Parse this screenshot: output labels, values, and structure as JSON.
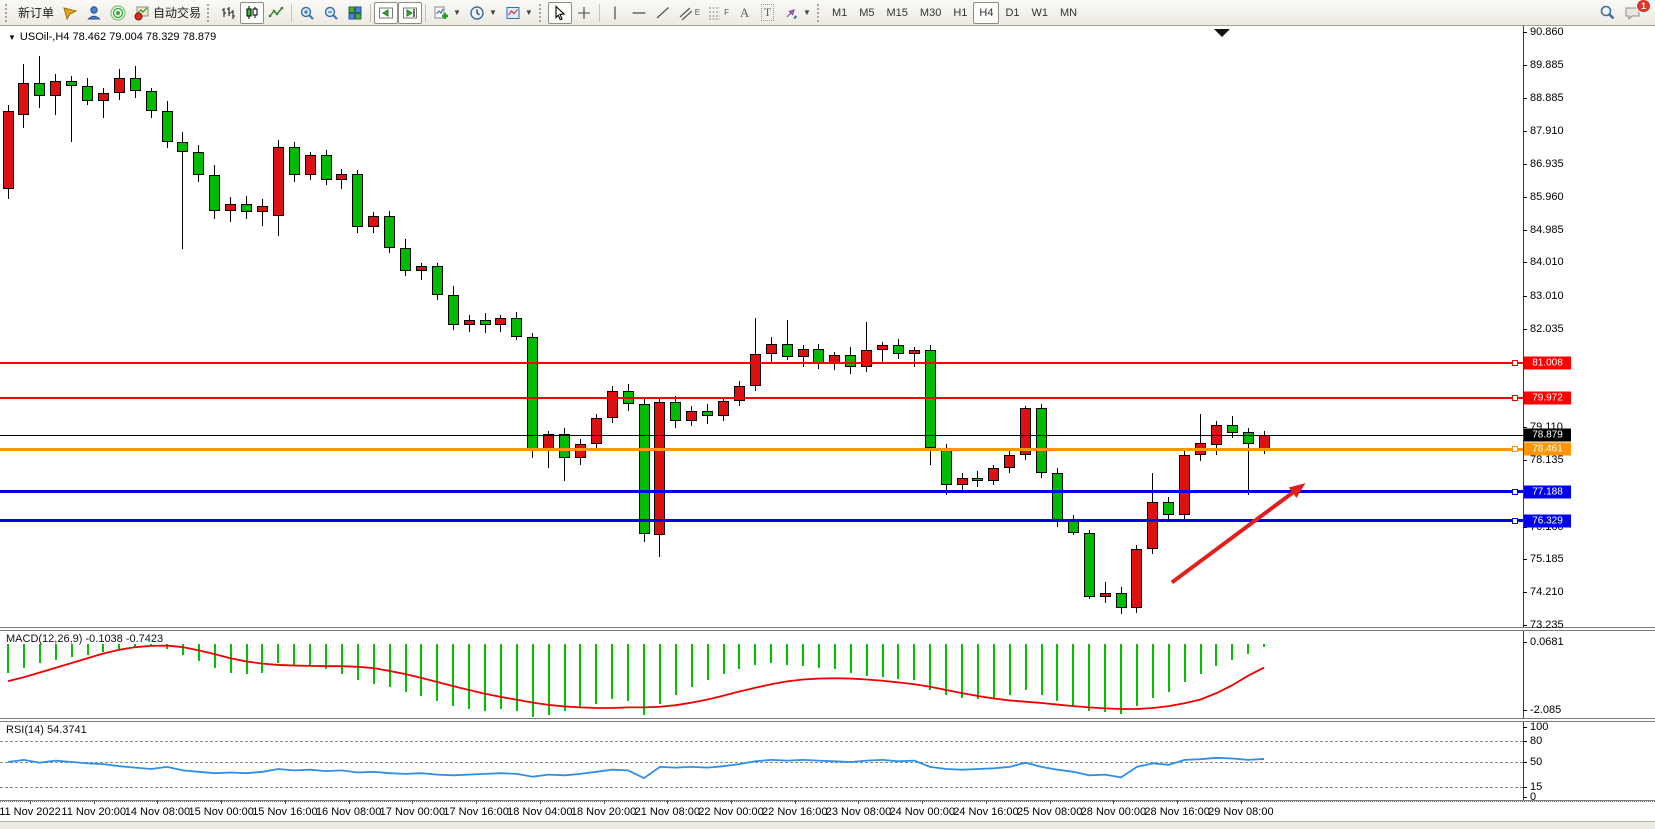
{
  "toolbar": {
    "new_order": "新订单",
    "auto_trading": "自动交易",
    "text_tool": "A",
    "label_tool": "T",
    "channel_suffix": "E",
    "fibo_suffix": "F",
    "timeframes": [
      "M1",
      "M5",
      "M15",
      "M30",
      "H1",
      "H4",
      "D1",
      "W1",
      "MN"
    ],
    "active_timeframe": "H4",
    "notification_count": "1"
  },
  "chart": {
    "symbol_period": "USOil-,H4",
    "ohlc_text": "78.462 79.004 78.329 78.879"
  },
  "chart_data": {
    "type": "candlestick",
    "symbol": "USOil-",
    "timeframe": "H4",
    "last_ohlc": {
      "open": 78.462,
      "high": 79.004,
      "low": 78.329,
      "close": 78.879
    },
    "price_axis": {
      "max": 90.86,
      "min": 73.235,
      "ticks": [
        {
          "v": 90.86,
          "t": "90.860"
        },
        {
          "v": 89.885,
          "t": "89.885"
        },
        {
          "v": 88.885,
          "t": "88.885"
        },
        {
          "v": 87.91,
          "t": "87.910"
        },
        {
          "v": 86.935,
          "t": "86.935"
        },
        {
          "v": 85.96,
          "t": "85.960"
        },
        {
          "v": 84.985,
          "t": "84.985"
        },
        {
          "v": 84.01,
          "t": "84.010"
        },
        {
          "v": 83.01,
          "t": "83.010"
        },
        {
          "v": 82.035,
          "t": "82.035"
        },
        {
          "v": 79.11,
          "t": "79.110"
        },
        {
          "v": 78.135,
          "t": "78.135"
        },
        {
          "v": 76.16,
          "t": "76.160"
        },
        {
          "v": 75.185,
          "t": "75.185"
        },
        {
          "v": 74.21,
          "t": "74.210"
        },
        {
          "v": 73.235,
          "t": "73.235"
        }
      ]
    },
    "hlines": [
      {
        "price": 81.008,
        "label": "81.008",
        "color": "#ff0000",
        "width": 2,
        "node": true
      },
      {
        "price": 79.972,
        "label": "79.972",
        "color": "#ff0000",
        "width": 2,
        "node": true
      },
      {
        "price": 78.879,
        "label": "78.879",
        "color": "#000000",
        "width": 1,
        "node": false
      },
      {
        "price": 78.461,
        "label": "78.461",
        "color": "#ff9500",
        "width": 3,
        "node": true
      },
      {
        "price": 77.188,
        "label": "77.188",
        "color": "#0000ee",
        "width": 3,
        "node": true
      },
      {
        "price": 76.329,
        "label": "76.329",
        "color": "#0000ee",
        "width": 3,
        "node": true
      }
    ],
    "candles": [
      [
        86.2,
        88.7,
        85.9,
        88.5
      ],
      [
        88.4,
        89.9,
        88.0,
        89.35
      ],
      [
        89.35,
        90.15,
        88.6,
        88.95
      ],
      [
        88.95,
        89.6,
        88.4,
        89.4
      ],
      [
        89.4,
        89.55,
        87.6,
        89.25
      ],
      [
        89.25,
        89.5,
        88.7,
        88.8
      ],
      [
        88.8,
        89.2,
        88.3,
        89.05
      ],
      [
        89.05,
        89.75,
        88.85,
        89.5
      ],
      [
        89.5,
        89.85,
        88.9,
        89.1
      ],
      [
        89.1,
        89.2,
        88.3,
        88.5
      ],
      [
        88.5,
        88.8,
        87.4,
        87.6
      ],
      [
        87.6,
        87.9,
        84.4,
        87.3
      ],
      [
        87.3,
        87.5,
        86.4,
        86.6
      ],
      [
        86.6,
        86.9,
        85.3,
        85.55
      ],
      [
        85.55,
        85.95,
        85.2,
        85.75
      ],
      [
        85.75,
        86.0,
        85.3,
        85.5
      ],
      [
        85.5,
        85.9,
        85.1,
        85.7
      ],
      [
        85.4,
        87.65,
        84.8,
        87.45
      ],
      [
        87.45,
        87.6,
        86.4,
        86.6
      ],
      [
        86.6,
        87.3,
        86.45,
        87.2
      ],
      [
        87.2,
        87.35,
        86.3,
        86.45
      ],
      [
        86.45,
        86.8,
        86.2,
        86.65
      ],
      [
        86.65,
        86.75,
        84.9,
        85.05
      ],
      [
        85.05,
        85.5,
        84.9,
        85.4
      ],
      [
        85.4,
        85.55,
        84.3,
        84.45
      ],
      [
        84.45,
        84.7,
        83.6,
        83.75
      ],
      [
        83.75,
        84.0,
        83.5,
        83.9
      ],
      [
        83.9,
        84.0,
        82.9,
        83.05
      ],
      [
        83.05,
        83.3,
        82.0,
        82.15
      ],
      [
        82.15,
        82.45,
        81.95,
        82.3
      ],
      [
        82.3,
        82.5,
        81.9,
        82.15
      ],
      [
        82.15,
        82.45,
        81.95,
        82.35
      ],
      [
        82.35,
        82.55,
        81.7,
        81.8
      ],
      [
        81.8,
        81.9,
        78.2,
        78.45
      ],
      [
        78.45,
        79.0,
        77.9,
        78.9
      ],
      [
        78.9,
        79.1,
        77.5,
        78.2
      ],
      [
        78.2,
        78.75,
        78.0,
        78.6
      ],
      [
        78.6,
        79.5,
        78.45,
        79.4
      ],
      [
        79.4,
        80.35,
        79.25,
        80.2
      ],
      [
        80.2,
        80.4,
        79.6,
        79.8
      ],
      [
        79.8,
        80.0,
        75.7,
        75.95
      ],
      [
        75.9,
        80.0,
        75.25,
        79.85
      ],
      [
        79.85,
        80.05,
        79.1,
        79.3
      ],
      [
        79.3,
        79.75,
        79.15,
        79.6
      ],
      [
        79.6,
        79.8,
        79.2,
        79.45
      ],
      [
        79.45,
        80.0,
        79.3,
        79.9
      ],
      [
        79.9,
        80.5,
        79.75,
        80.35
      ],
      [
        80.35,
        82.35,
        80.2,
        81.3
      ],
      [
        81.3,
        81.8,
        81.0,
        81.6
      ],
      [
        81.6,
        82.3,
        81.1,
        81.2
      ],
      [
        81.2,
        81.55,
        80.9,
        81.45
      ],
      [
        81.45,
        81.6,
        80.85,
        81.0
      ],
      [
        81.0,
        81.35,
        80.8,
        81.25
      ],
      [
        81.25,
        81.5,
        80.7,
        80.9
      ],
      [
        80.9,
        82.25,
        80.75,
        81.4
      ],
      [
        81.4,
        81.65,
        81.05,
        81.55
      ],
      [
        81.55,
        81.75,
        81.15,
        81.3
      ],
      [
        81.3,
        81.5,
        80.9,
        81.4
      ],
      [
        81.4,
        81.55,
        78.0,
        78.5
      ],
      [
        78.5,
        78.6,
        77.1,
        77.4
      ],
      [
        77.4,
        77.75,
        77.2,
        77.6
      ],
      [
        77.6,
        77.8,
        77.35,
        77.5
      ],
      [
        77.5,
        78.0,
        77.4,
        77.9
      ],
      [
        77.9,
        78.45,
        77.75,
        78.3
      ],
      [
        78.3,
        79.75,
        78.15,
        79.68
      ],
      [
        79.68,
        79.8,
        77.6,
        77.75
      ],
      [
        77.75,
        77.9,
        76.15,
        76.36
      ],
      [
        76.36,
        76.5,
        75.9,
        75.97
      ],
      [
        75.97,
        76.05,
        74.0,
        74.07
      ],
      [
        74.07,
        74.5,
        73.9,
        74.2
      ],
      [
        74.2,
        74.35,
        73.55,
        73.74
      ],
      [
        73.74,
        75.6,
        73.6,
        75.5
      ],
      [
        75.5,
        77.75,
        75.35,
        76.9
      ],
      [
        76.9,
        77.05,
        76.3,
        76.5
      ],
      [
        76.5,
        78.4,
        76.4,
        78.3
      ],
      [
        78.3,
        79.5,
        78.1,
        78.63
      ],
      [
        78.57,
        79.3,
        78.3,
        79.17
      ],
      [
        79.17,
        79.45,
        78.8,
        78.95
      ],
      [
        78.97,
        79.1,
        77.1,
        78.6
      ],
      [
        78.462,
        79.004,
        78.329,
        78.879
      ]
    ],
    "time_labels": [
      "11 Nov 2022",
      "11 Nov 20:00",
      "14 Nov 08:00",
      "15 Nov 00:00",
      "15 Nov 16:00",
      "16 Nov 08:00",
      "17 Nov 00:00",
      "17 Nov 16:00",
      "18 Nov 04:00",
      "18 Nov 20:00",
      "21 Nov 08:00",
      "22 Nov 00:00",
      "22 Nov 16:00",
      "23 Nov 08:00",
      "24 Nov 00:00",
      "24 Nov 16:00",
      "25 Nov 08:00",
      "28 Nov 00:00",
      "28 Nov 16:00",
      "29 Nov 08:00"
    ],
    "indicators": {
      "macd": {
        "name": "MACD(12,26,9)",
        "values_text": "-0.1038 -0.7423",
        "axis": [
          {
            "v": 0.0681,
            "t": "0.0681"
          },
          {
            "v": -2.085,
            "t": "-2.085"
          }
        ],
        "histogram": [
          -0.9,
          -0.75,
          -0.6,
          -0.5,
          -0.42,
          -0.35,
          -0.25,
          -0.15,
          -0.08,
          -0.05,
          -0.15,
          -0.35,
          -0.55,
          -0.75,
          -0.9,
          -0.95,
          -0.9,
          -0.6,
          -0.65,
          -0.7,
          -0.8,
          -0.95,
          -1.15,
          -1.25,
          -1.35,
          -1.5,
          -1.65,
          -1.8,
          -1.95,
          -2.05,
          -2.1,
          -2.05,
          -2.1,
          -2.3,
          -2.25,
          -2.1,
          -2.0,
          -1.9,
          -1.75,
          -1.8,
          -2.25,
          -1.9,
          -1.6,
          -1.35,
          -1.15,
          -0.95,
          -0.8,
          -0.65,
          -0.6,
          -0.65,
          -0.7,
          -0.75,
          -0.8,
          -0.9,
          -1.0,
          -1.05,
          -1.1,
          -1.15,
          -1.45,
          -1.6,
          -1.7,
          -1.75,
          -1.7,
          -1.6,
          -1.45,
          -1.6,
          -1.8,
          -1.95,
          -2.1,
          -2.15,
          -2.2,
          -1.95,
          -1.7,
          -1.5,
          -1.2,
          -0.95,
          -0.7,
          -0.5,
          -0.3,
          -0.1038
        ],
        "signal": [
          -1.17,
          -1.05,
          -0.9,
          -0.75,
          -0.6,
          -0.45,
          -0.3,
          -0.18,
          -0.1,
          -0.06,
          -0.05,
          -0.1,
          -0.2,
          -0.32,
          -0.45,
          -0.55,
          -0.62,
          -0.66,
          -0.68,
          -0.69,
          -0.7,
          -0.7,
          -0.72,
          -0.76,
          -0.85,
          -0.95,
          -1.07,
          -1.2,
          -1.33,
          -1.45,
          -1.57,
          -1.67,
          -1.76,
          -1.85,
          -1.92,
          -1.97,
          -2.0,
          -2.02,
          -2.02,
          -2.0,
          -2.0,
          -1.98,
          -1.93,
          -1.85,
          -1.75,
          -1.63,
          -1.5,
          -1.38,
          -1.27,
          -1.18,
          -1.12,
          -1.09,
          -1.08,
          -1.09,
          -1.12,
          -1.16,
          -1.21,
          -1.27,
          -1.35,
          -1.45,
          -1.55,
          -1.64,
          -1.72,
          -1.78,
          -1.82,
          -1.86,
          -1.91,
          -1.96,
          -2.0,
          -2.03,
          -2.05,
          -2.05,
          -2.02,
          -1.96,
          -1.87,
          -1.75,
          -1.55,
          -1.3,
          -1.0,
          -0.7423
        ]
      },
      "rsi": {
        "name": "RSI(14)",
        "value_text": "54.3741",
        "axis": [
          {
            "v": 100,
            "t": "100",
            "dashed": false
          },
          {
            "v": 80,
            "t": "80",
            "dashed": true
          },
          {
            "v": 50,
            "t": "50",
            "dashed": true
          },
          {
            "v": 15,
            "t": "15",
            "dashed": true
          },
          {
            "v": 0,
            "t": "0",
            "dashed": false
          }
        ],
        "values": [
          50,
          53,
          49,
          52,
          50,
          48,
          47,
          44,
          42,
          40,
          43,
          38,
          36,
          34,
          35,
          34,
          36,
          40,
          38,
          39,
          37,
          38,
          35,
          36,
          34,
          33,
          34,
          32,
          31,
          32,
          33,
          34,
          33,
          29,
          32,
          31,
          33,
          36,
          39,
          38,
          27,
          43,
          42,
          43,
          42,
          44,
          47,
          51,
          53,
          52,
          53,
          52,
          51,
          50,
          52,
          53,
          51,
          52,
          43,
          40,
          39,
          40,
          41,
          43,
          49,
          43,
          39,
          36,
          31,
          32,
          28,
          43,
          48,
          46,
          53,
          54,
          56,
          55,
          53,
          54.3741
        ]
      }
    },
    "annotations": {
      "arrow": {
        "from": {
          "index": 73.2,
          "price": 74.5
        },
        "to": {
          "index": 81.6,
          "price": 77.45
        },
        "color": "#e01f1f"
      }
    },
    "colors": {
      "candle_up": "#dd1111",
      "candle_down": "#00bb00",
      "macd_histogram": "#00c400",
      "macd_signal": "#ee0000",
      "rsi_line": "#2f8fe8"
    }
  }
}
